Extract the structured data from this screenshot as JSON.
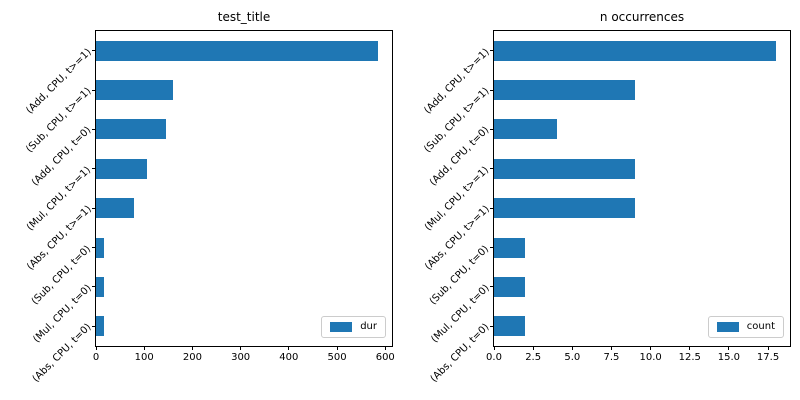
{
  "figure": {
    "background": "#ffffff",
    "text_color": "#000000",
    "spine_color": "#000000"
  },
  "chart_data": [
    {
      "type": "bar",
      "orientation": "horizontal",
      "title": "test_title",
      "categories": [
        "(Add, CPU, t>=1)",
        "(Sub, CPU, t>=1)",
        "(Add, CPU, t=0)",
        "(Mul, CPU, t>=1)",
        "(Abs, CPU, t>=1)",
        "(Sub, CPU, t=0)",
        "(Mul, CPU, t=0)",
        "(Abs, CPU, t=0)"
      ],
      "series": [
        {
          "name": "dur",
          "values": [
            585,
            160,
            145,
            106,
            78,
            17,
            17,
            17
          ]
        }
      ],
      "xlim": [
        0,
        614
      ],
      "xticks": [
        0,
        100,
        200,
        300,
        400,
        500,
        600
      ],
      "xtick_labels": [
        "0",
        "100",
        "200",
        "300",
        "400",
        "500",
        "600"
      ],
      "grid": false,
      "legend": {
        "label": "dur",
        "position": "lower right"
      },
      "bar_color": "#1f77b4"
    },
    {
      "type": "bar",
      "orientation": "horizontal",
      "title": "n occurrences",
      "categories": [
        "(Add, CPU, t>=1)",
        "(Sub, CPU, t>=1)",
        "(Add, CPU, t=0)",
        "(Mul, CPU, t>=1)",
        "(Abs, CPU, t>=1)",
        "(Sub, CPU, t=0)",
        "(Mul, CPU, t=0)",
        "(Abs, CPU, t=0)"
      ],
      "series": [
        {
          "name": "count",
          "values": [
            18,
            9,
            4,
            9,
            9,
            2,
            2,
            2
          ]
        }
      ],
      "xlim": [
        0,
        18.9
      ],
      "xticks": [
        0,
        2.5,
        5,
        7.5,
        10,
        12.5,
        15,
        17.5
      ],
      "xtick_labels": [
        "0.0",
        "2.5",
        "5.0",
        "7.5",
        "10.0",
        "12.5",
        "15.0",
        "17.5"
      ],
      "grid": false,
      "legend": {
        "label": "count",
        "position": "lower right"
      },
      "bar_color": "#1f77b4"
    }
  ]
}
